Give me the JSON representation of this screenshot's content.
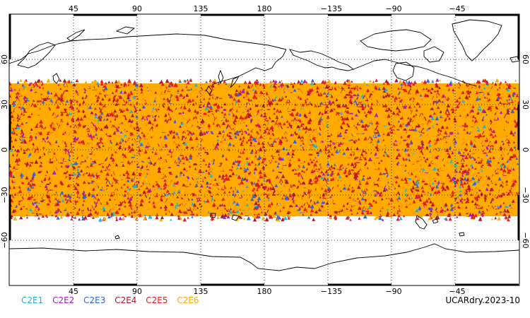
{
  "map": {
    "lon_ticks_top": [
      "45",
      "90",
      "135",
      "180",
      "−135",
      "−90",
      "−45"
    ],
    "lon_ticks_bottom": [
      "45",
      "90",
      "135",
      "180",
      "−135",
      "−90",
      "−45"
    ],
    "lat_ticks": [
      "60",
      "30",
      "0",
      "−30",
      "−60"
    ],
    "projection": "cylindrical equidistant",
    "lon_range": [
      0,
      360
    ],
    "lat_range": [
      -90,
      90
    ],
    "data_lat_range": [
      -45,
      45
    ],
    "colors": {
      "coast": "#000000",
      "grid": "#000000",
      "background": "#ffffff"
    }
  },
  "legend": {
    "items": [
      {
        "label": "C2E1",
        "color": "#1fb5d6"
      },
      {
        "label": "C2E2",
        "color": "#a21cc4"
      },
      {
        "label": "C2E3",
        "color": "#3465d8"
      },
      {
        "label": "C2E4",
        "color": "#b0182d"
      },
      {
        "label": "C2E5",
        "color": "#e21e22"
      },
      {
        "label": "C2E6",
        "color": "#ffab00"
      }
    ]
  },
  "credit": "UCARdry.2023-10"
}
